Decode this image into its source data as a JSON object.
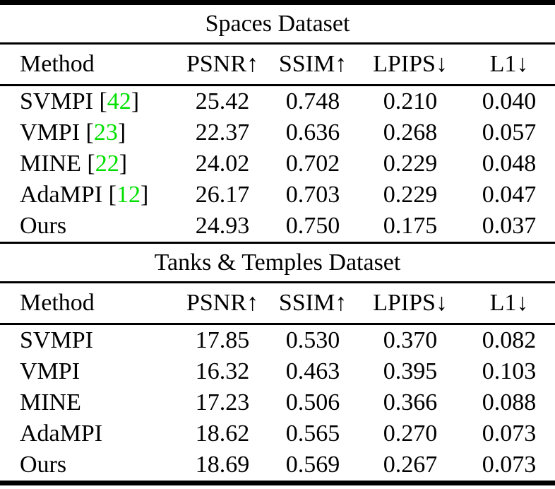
{
  "figure": {
    "background": "#ffffff",
    "text_color": "#000000",
    "citation_color": "#00e000"
  },
  "tables": [
    {
      "title": "Spaces Dataset",
      "headers": [
        "Method",
        "PSNR↑",
        "SSIM↑",
        "LPIPS↓",
        "L1↓"
      ],
      "rows": [
        {
          "method": "SVMPI",
          "cite_open": " [",
          "cite": "42",
          "cite_close": "]",
          "psnr": "25.42",
          "ssim": "0.748",
          "lpips": "0.210",
          "l1": "0.040"
        },
        {
          "method": "VMPI",
          "cite_open": " [",
          "cite": "23",
          "cite_close": "]",
          "psnr": "22.37",
          "ssim": "0.636",
          "lpips": "0.268",
          "l1": "0.057"
        },
        {
          "method": "MINE",
          "cite_open": " [",
          "cite": "22",
          "cite_close": "]",
          "psnr": "24.02",
          "ssim": "0.702",
          "lpips": "0.229",
          "l1": "0.048"
        },
        {
          "method": "AdaMPI",
          "cite_open": " [",
          "cite": "12",
          "cite_close": "]",
          "psnr": "26.17",
          "ssim": "0.703",
          "lpips": "0.229",
          "l1": "0.047"
        },
        {
          "method": "Ours",
          "cite_open": "",
          "cite": "",
          "cite_close": "",
          "psnr": "24.93",
          "ssim": "0.750",
          "lpips": "0.175",
          "l1": "0.037"
        }
      ]
    },
    {
      "title": "Tanks & Temples Dataset",
      "headers": [
        "Method",
        "PSNR↑",
        "SSIM↑",
        "LPIPS↓",
        "L1↓"
      ],
      "rows": [
        {
          "method": "SVMPI",
          "cite_open": "",
          "cite": "",
          "cite_close": "",
          "psnr": "17.85",
          "ssim": "0.530",
          "lpips": "0.370",
          "l1": "0.082"
        },
        {
          "method": "VMPI",
          "cite_open": "",
          "cite": "",
          "cite_close": "",
          "psnr": "16.32",
          "ssim": "0.463",
          "lpips": "0.395",
          "l1": "0.103"
        },
        {
          "method": "MINE",
          "cite_open": "",
          "cite": "",
          "cite_close": "",
          "psnr": "17.23",
          "ssim": "0.506",
          "lpips": "0.366",
          "l1": "0.088"
        },
        {
          "method": "AdaMPI",
          "cite_open": "",
          "cite": "",
          "cite_close": "",
          "psnr": "18.62",
          "ssim": "0.565",
          "lpips": "0.270",
          "l1": "0.073"
        },
        {
          "method": "Ours",
          "cite_open": "",
          "cite": "",
          "cite_close": "",
          "psnr": "18.69",
          "ssim": "0.569",
          "lpips": "0.267",
          "l1": "0.073"
        }
      ]
    }
  ],
  "chart_data": [
    {
      "type": "table",
      "title": "Spaces Dataset",
      "columns": [
        "Method",
        "PSNR↑",
        "SSIM↑",
        "LPIPS↓",
        "L1↓"
      ],
      "rows": [
        [
          "SVMPI [42]",
          25.42,
          0.748,
          0.21,
          0.04
        ],
        [
          "VMPI [23]",
          22.37,
          0.636,
          0.268,
          0.057
        ],
        [
          "MINE [22]",
          24.02,
          0.702,
          0.229,
          0.048
        ],
        [
          "AdaMPI [12]",
          26.17,
          0.703,
          0.229,
          0.047
        ],
        [
          "Ours",
          24.93,
          0.75,
          0.175,
          0.037
        ]
      ]
    },
    {
      "type": "table",
      "title": "Tanks & Temples Dataset",
      "columns": [
        "Method",
        "PSNR↑",
        "SSIM↑",
        "LPIPS↓",
        "L1↓"
      ],
      "rows": [
        [
          "SVMPI",
          17.85,
          0.53,
          0.37,
          0.082
        ],
        [
          "VMPI",
          16.32,
          0.463,
          0.395,
          0.103
        ],
        [
          "MINE",
          17.23,
          0.506,
          0.366,
          0.088
        ],
        [
          "AdaMPI",
          18.62,
          0.565,
          0.27,
          0.073
        ],
        [
          "Ours",
          18.69,
          0.569,
          0.267,
          0.073
        ]
      ]
    }
  ]
}
